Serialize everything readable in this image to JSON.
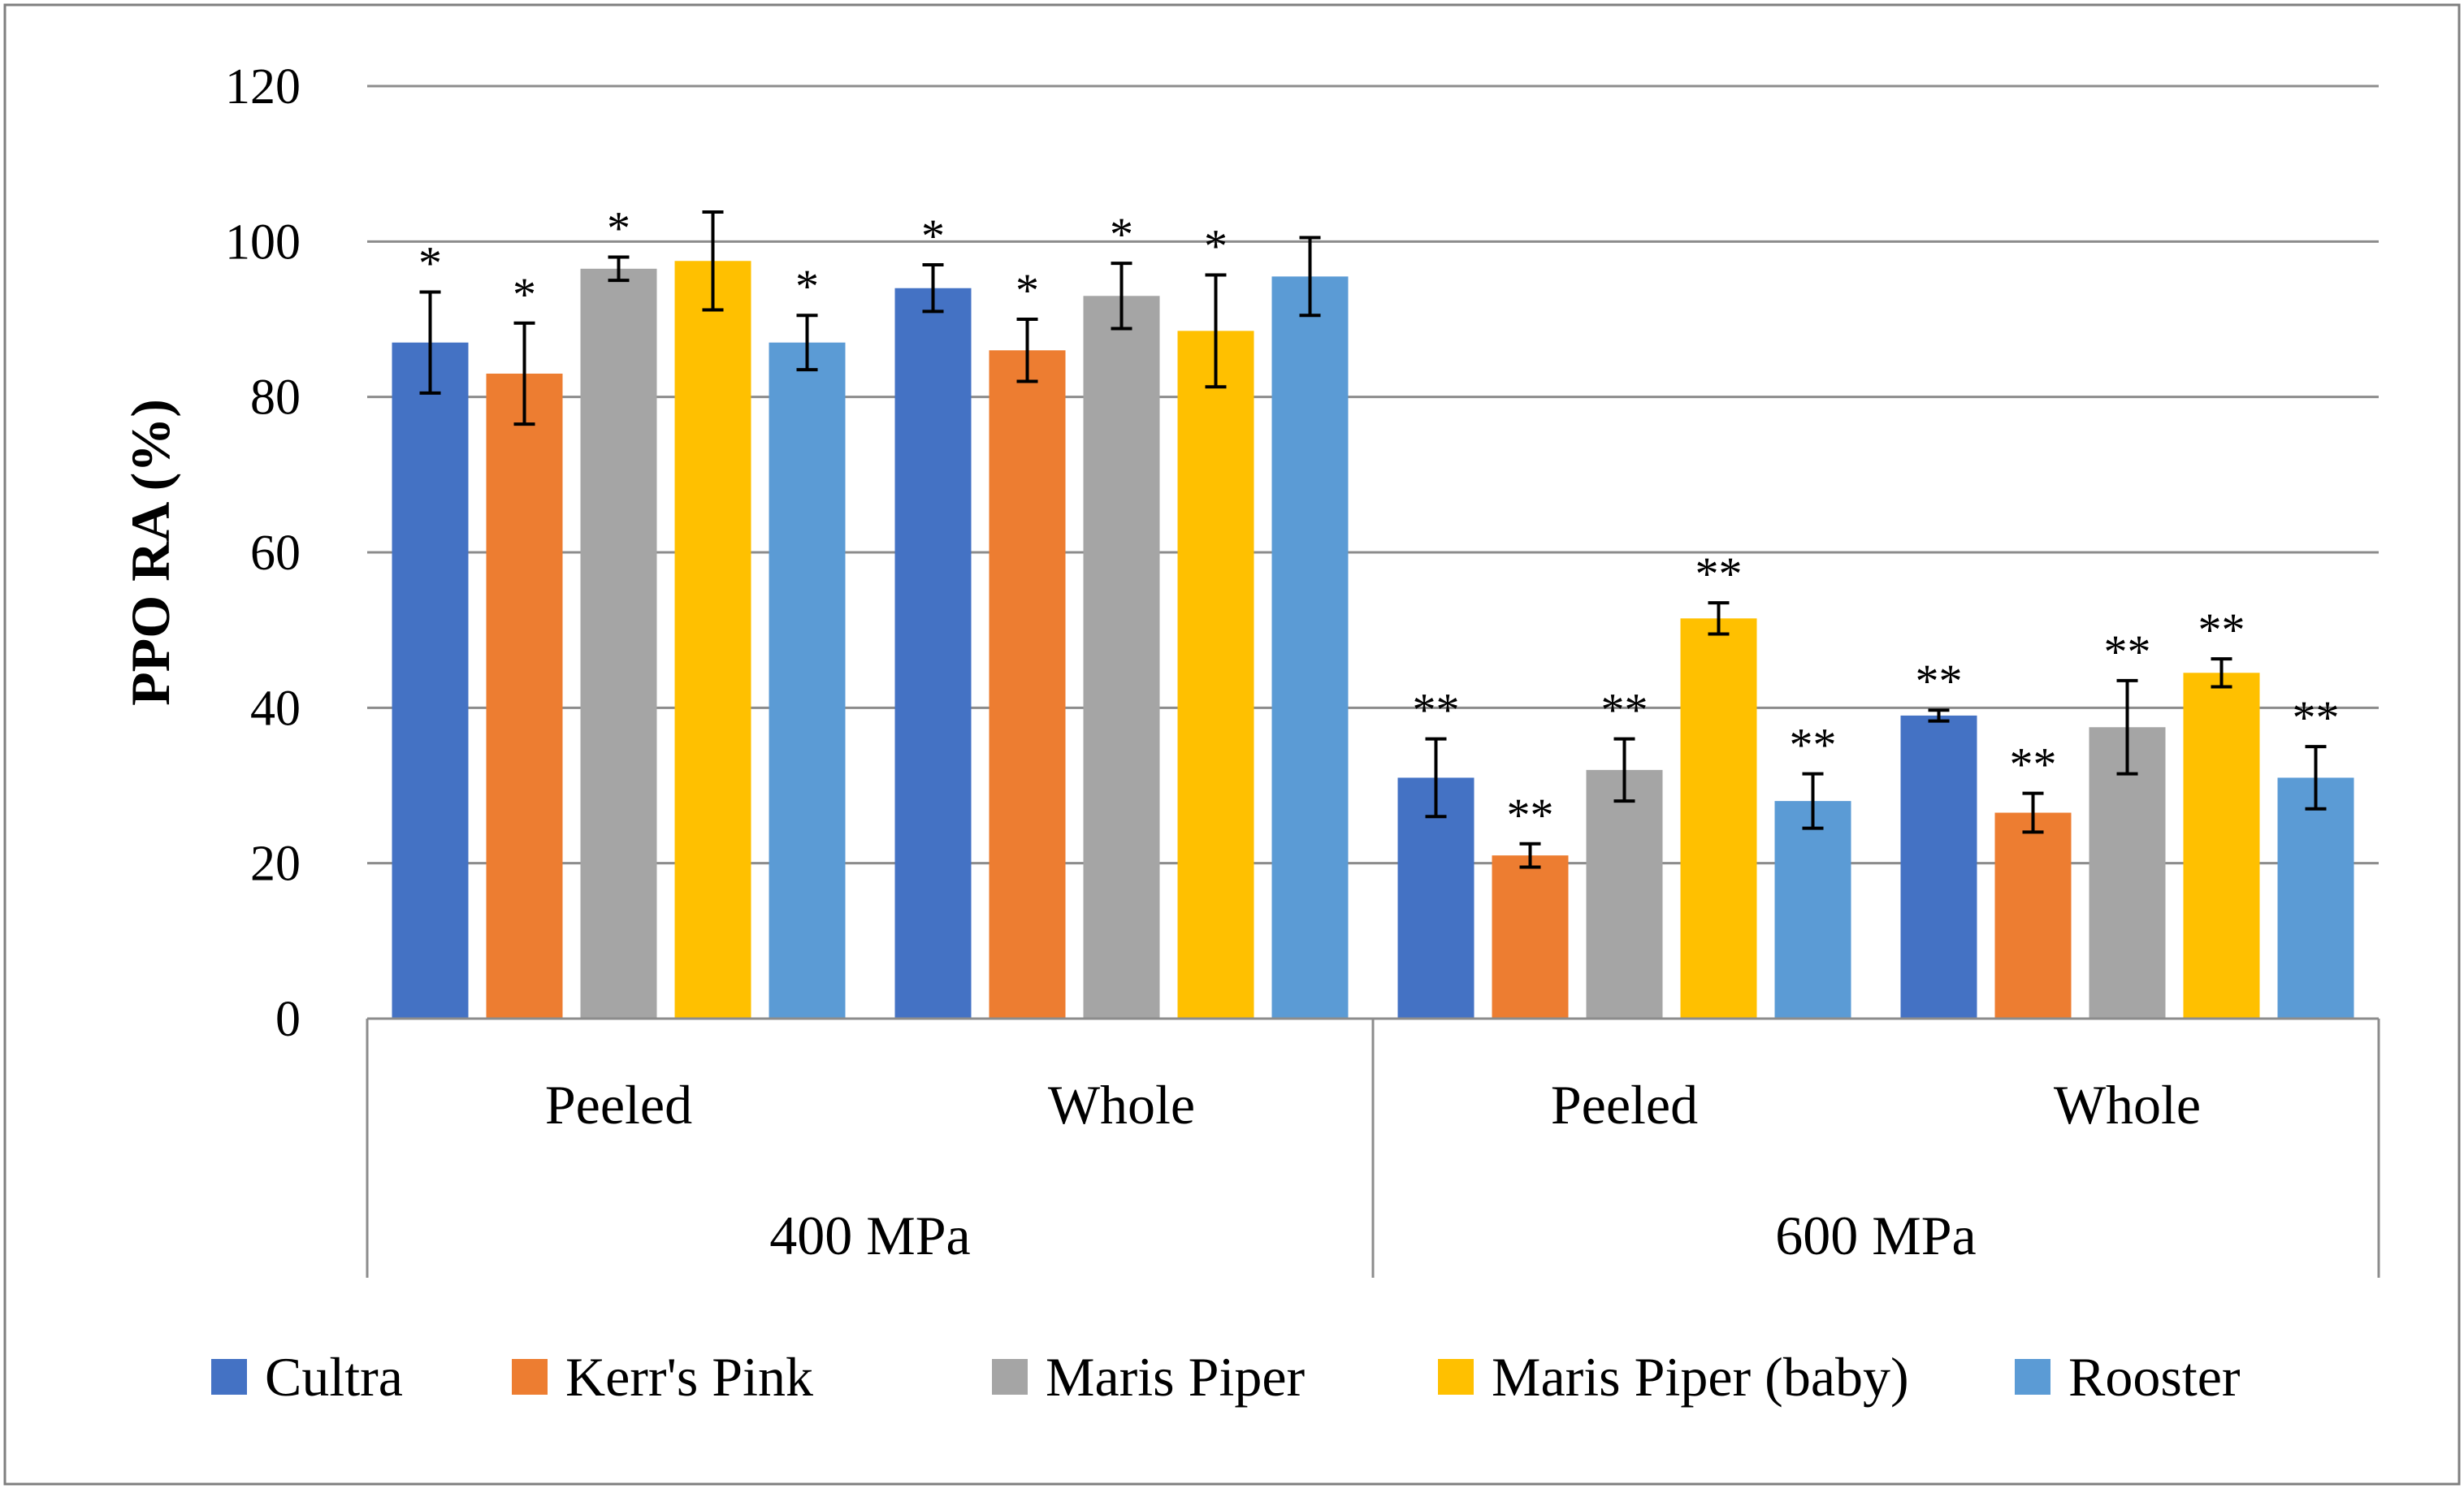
{
  "chart_data": {
    "type": "bar",
    "ylabel": "PPO RA (%)",
    "ylim": [
      0,
      120
    ],
    "yticks": [
      0,
      20,
      40,
      60,
      80,
      100,
      120
    ],
    "grid": true,
    "legend_position": "bottom",
    "group_levels": [
      {
        "label": "400 MPa",
        "subgroups": [
          "Peeled",
          "Whole"
        ]
      },
      {
        "label": "600 MPa",
        "subgroups": [
          "Peeled",
          "Whole"
        ]
      }
    ],
    "categories": [
      "Peeled",
      "Whole",
      "Peeled",
      "Whole"
    ],
    "series": [
      {
        "name": "Cultra",
        "color": "#4472C4",
        "values": [
          87,
          94,
          31,
          39
        ],
        "errors": [
          6.5,
          3,
          5,
          0.7
        ],
        "annotations": [
          "*",
          "*",
          "**",
          "**"
        ]
      },
      {
        "name": "Kerr's Pink",
        "color": "#ED7D31",
        "values": [
          83,
          86,
          21,
          26.5
        ],
        "errors": [
          6.5,
          4,
          1.5,
          2.5
        ],
        "annotations": [
          "*",
          "*",
          "**",
          "**"
        ]
      },
      {
        "name": "Maris Piper",
        "color": "#A5A5A5",
        "values": [
          96.5,
          93,
          32,
          37.5
        ],
        "errors": [
          1.5,
          4.2,
          4,
          6
        ],
        "annotations": [
          "*",
          "*",
          "**",
          "**"
        ]
      },
      {
        "name": "Maris Piper (baby)",
        "color": "#FFC000",
        "values": [
          97.5,
          88.5,
          51.5,
          44.5
        ],
        "errors": [
          6.3,
          7.2,
          2,
          1.8
        ],
        "annotations": [
          "",
          "*",
          "**",
          "**"
        ]
      },
      {
        "name": "Rooster",
        "color": "#5B9BD5",
        "values": [
          87,
          95.5,
          28,
          31
        ],
        "errors": [
          3.5,
          5,
          3.5,
          4
        ],
        "annotations": [
          "*",
          "",
          "**",
          "**"
        ]
      }
    ]
  }
}
